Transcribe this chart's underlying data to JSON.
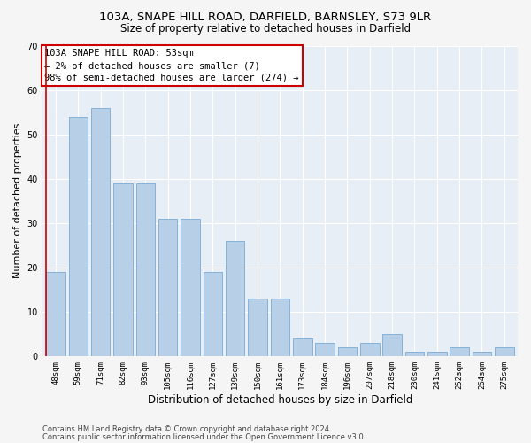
{
  "title_line1": "103A, SNAPE HILL ROAD, DARFIELD, BARNSLEY, S73 9LR",
  "title_line2": "Size of property relative to detached houses in Darfield",
  "xlabel": "Distribution of detached houses by size in Darfield",
  "ylabel": "Number of detached properties",
  "categories": [
    "48sqm",
    "59sqm",
    "71sqm",
    "82sqm",
    "93sqm",
    "105sqm",
    "116sqm",
    "127sqm",
    "139sqm",
    "150sqm",
    "161sqm",
    "173sqm",
    "184sqm",
    "196sqm",
    "207sqm",
    "218sqm",
    "230sqm",
    "241sqm",
    "252sqm",
    "264sqm",
    "275sqm"
  ],
  "values": [
    19,
    54,
    56,
    39,
    39,
    31,
    31,
    19,
    26,
    13,
    13,
    4,
    3,
    2,
    3,
    5,
    1,
    1,
    2,
    1,
    2
  ],
  "bar_color": "#b8cfe8",
  "bar_edge_color": "#7aabd4",
  "highlight_color": "#cc0000",
  "annotation_line1": "103A SNAPE HILL ROAD: 53sqm",
  "annotation_line2": "← 2% of detached houses are smaller (7)",
  "annotation_line3": "98% of semi-detached houses are larger (274) →",
  "annotation_box_color": "#ffffff",
  "annotation_box_edge": "#cc0000",
  "ylim": [
    0,
    70
  ],
  "yticks": [
    0,
    10,
    20,
    30,
    40,
    50,
    60,
    70
  ],
  "bg_color": "#e8eef5",
  "grid_color": "#ffffff",
  "fig_bg_color": "#f5f5f5",
  "footer_line1": "Contains HM Land Registry data © Crown copyright and database right 2024.",
  "footer_line2": "Contains public sector information licensed under the Open Government Licence v3.0.",
  "title_fontsize": 9.5,
  "subtitle_fontsize": 8.5,
  "xlabel_fontsize": 8.5,
  "ylabel_fontsize": 8,
  "tick_fontsize": 6.5,
  "annotation_fontsize": 7.5,
  "footer_fontsize": 6
}
